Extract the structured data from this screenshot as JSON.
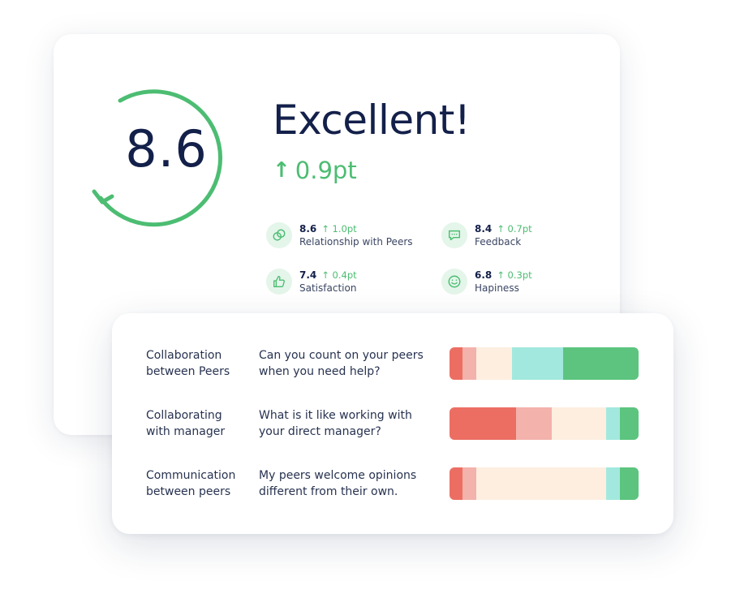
{
  "score_card": {
    "score": "8.6",
    "rating": "Excellent!",
    "change_arrow": "↑",
    "change": "0.9pt",
    "accent_color": "#4cbd72",
    "metrics": [
      {
        "icon": "peers-icon",
        "score": "8.6",
        "delta": "↑ 1.0pt",
        "label": "Relationship with Peers"
      },
      {
        "icon": "speech-bubble-icon",
        "score": "8.4",
        "delta": "↑ 0.7pt",
        "label": "Feedback"
      },
      {
        "icon": "thumbs-up-icon",
        "score": "7.4",
        "delta": "↑ 0.4pt",
        "label": "Satisfaction"
      },
      {
        "icon": "smiley-icon",
        "score": "6.8",
        "delta": "↑ 0.3pt",
        "label": "Hapiness"
      }
    ]
  },
  "survey": {
    "colors": {
      "strongly_negative": "#ec6e63",
      "negative": "#f3b2ab",
      "neutral": "#fdeee0",
      "positive": "#a2e8de",
      "strongly_positive": "#5cc47e"
    },
    "rows": [
      {
        "category": "Collaboration between Peers",
        "question": "Can you count on your peers when you need help?",
        "distribution": [
          0.07,
          0.07,
          0.19,
          0.27,
          0.4
        ]
      },
      {
        "category": "Collaborating with manager",
        "question": "What is it like working with your direct manager?",
        "distribution": [
          0.35,
          0.19,
          0.29,
          0.07,
          0.1
        ]
      },
      {
        "category": "Communication between peers",
        "question": "My peers welcome opinions different from their own.",
        "distribution": [
          0.07,
          0.07,
          0.69,
          0.07,
          0.1
        ]
      }
    ]
  }
}
